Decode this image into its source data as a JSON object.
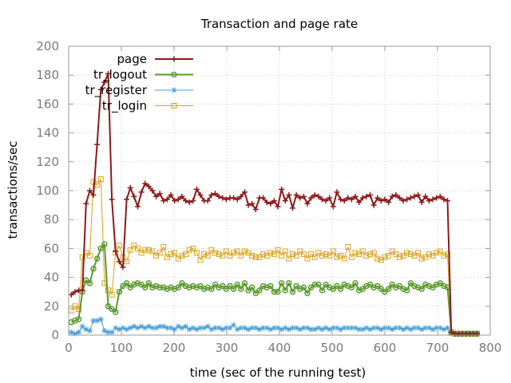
{
  "chart_data": {
    "type": "line",
    "title": "Transaction and page rate",
    "xlabel": "time (sec of the running test)",
    "ylabel": "transactions/sec",
    "xlim": [
      0,
      800
    ],
    "ylim": [
      0,
      200
    ],
    "x_ticks": [
      0,
      100,
      200,
      300,
      400,
      500,
      600,
      700,
      800
    ],
    "y_ticks": [
      0,
      20,
      40,
      60,
      80,
      100,
      120,
      140,
      160,
      180,
      200
    ],
    "grid": true,
    "legend_position": "top-left",
    "x": [
      5,
      12,
      19,
      26,
      33,
      40,
      47,
      54,
      61,
      68,
      75,
      82,
      89,
      96,
      103,
      110,
      117,
      124,
      131,
      138,
      145,
      152,
      159,
      166,
      173,
      180,
      187,
      194,
      201,
      208,
      215,
      222,
      229,
      236,
      243,
      250,
      257,
      264,
      271,
      278,
      285,
      292,
      299,
      306,
      313,
      320,
      327,
      334,
      341,
      348,
      355,
      362,
      369,
      376,
      383,
      390,
      397,
      404,
      411,
      418,
      425,
      432,
      439,
      446,
      453,
      460,
      467,
      474,
      481,
      488,
      495,
      502,
      509,
      516,
      523,
      530,
      537,
      544,
      551,
      558,
      565,
      572,
      579,
      586,
      593,
      600,
      607,
      614,
      621,
      628,
      635,
      642,
      649,
      656,
      663,
      670,
      677,
      684,
      691,
      698,
      705,
      712,
      719,
      726,
      733,
      740,
      747,
      754,
      761,
      768,
      775
    ],
    "series": [
      {
        "name": "page",
        "color": "#8b1a1a",
        "marker": "plus",
        "values": [
          28,
          30,
          31,
          31,
          91,
          100,
          97,
          132,
          170,
          175,
          181,
          94,
          58,
          51,
          47,
          94,
          102,
          96,
          89,
          99,
          105,
          103,
          100,
          96,
          98,
          93,
          94,
          97,
          93,
          94,
          96,
          93,
          92,
          93,
          101,
          97,
          93,
          93,
          97,
          98,
          96,
          95,
          94,
          95,
          95,
          94,
          96,
          99,
          90,
          91,
          87,
          95,
          95,
          92,
          91,
          93,
          89,
          101,
          93,
          97,
          88,
          97,
          95,
          96,
          91,
          95,
          97,
          96,
          94,
          93,
          95,
          89,
          99,
          94,
          93,
          95,
          94,
          96,
          92,
          95,
          96,
          97,
          90,
          95,
          93,
          94,
          92,
          96,
          97,
          95,
          93,
          94,
          95,
          96,
          97,
          92,
          96,
          93,
          94,
          95,
          96,
          94,
          93,
          2,
          1,
          1,
          1,
          1,
          1,
          1,
          1
        ]
      },
      {
        "name": "tr_logout",
        "color": "#5a9a2e",
        "marker": "circle",
        "values": [
          9,
          10,
          11,
          30,
          38,
          36,
          46,
          53,
          60,
          63,
          20,
          18,
          16,
          30,
          34,
          36,
          33,
          35,
          36,
          35,
          33,
          36,
          33,
          34,
          33,
          33,
          32,
          33,
          32,
          33,
          36,
          34,
          33,
          34,
          33,
          34,
          32,
          33,
          32,
          35,
          33,
          34,
          32,
          34,
          32,
          35,
          32,
          36,
          31,
          33,
          29,
          31,
          34,
          33,
          34,
          30,
          30,
          36,
          31,
          36,
          30,
          34,
          32,
          33,
          29,
          33,
          35,
          35,
          31,
          35,
          33,
          32,
          34,
          32,
          35,
          34,
          33,
          36,
          31,
          32,
          34,
          35,
          33,
          34,
          32,
          30,
          32,
          35,
          33,
          34,
          32,
          31,
          36,
          34,
          33,
          32,
          35,
          34,
          33,
          35,
          36,
          34,
          33,
          2,
          1,
          1,
          1,
          1,
          1,
          1,
          1
        ]
      },
      {
        "name": "tr_register",
        "color": "#4aa0d8",
        "marker": "star",
        "values": [
          2,
          1,
          2,
          6,
          4,
          3,
          10,
          10,
          11,
          3,
          2,
          2,
          5,
          4,
          5,
          4,
          5,
          6,
          5,
          6,
          5,
          6,
          5,
          5,
          6,
          6,
          5,
          5,
          4,
          6,
          5,
          6,
          4,
          5,
          4,
          5,
          5,
          6,
          4,
          5,
          5,
          4,
          5,
          5,
          7,
          4,
          5,
          5,
          4,
          5,
          5,
          4,
          5,
          5,
          4,
          5,
          5,
          4,
          5,
          4,
          5,
          5,
          4,
          5,
          5,
          4,
          4,
          5,
          4,
          5,
          4,
          5,
          5,
          4,
          5,
          5,
          5,
          5,
          4,
          4,
          5,
          4,
          5,
          5,
          4,
          5,
          5,
          4,
          5,
          5,
          4,
          5,
          4,
          5,
          5,
          4,
          5,
          5,
          4,
          5,
          5,
          4,
          5,
          1,
          1,
          1,
          1,
          1,
          1,
          1,
          1
        ]
      },
      {
        "name": "tr_login",
        "color": "#d9a21a",
        "marker": "square",
        "values": [
          17,
          20,
          18,
          54,
          57,
          55,
          106,
          104,
          108,
          36,
          31,
          28,
          57,
          62,
          54,
          51,
          59,
          62,
          60,
          57,
          59,
          59,
          58,
          55,
          57,
          61,
          54,
          56,
          57,
          53,
          55,
          56,
          59,
          60,
          57,
          52,
          56,
          55,
          59,
          57,
          56,
          55,
          58,
          55,
          57,
          58,
          55,
          58,
          57,
          55,
          54,
          54,
          56,
          55,
          57,
          56,
          59,
          55,
          58,
          53,
          56,
          55,
          58,
          56,
          53,
          56,
          54,
          57,
          55,
          56,
          55,
          58,
          54,
          55,
          53,
          61,
          54,
          57,
          56,
          58,
          55,
          56,
          57,
          53,
          52,
          54,
          55,
          58,
          56,
          54,
          55,
          57,
          56,
          55,
          57,
          53,
          54,
          56,
          55,
          57,
          58,
          55,
          56,
          2,
          1,
          1,
          1,
          1,
          1,
          1,
          1
        ]
      }
    ]
  }
}
